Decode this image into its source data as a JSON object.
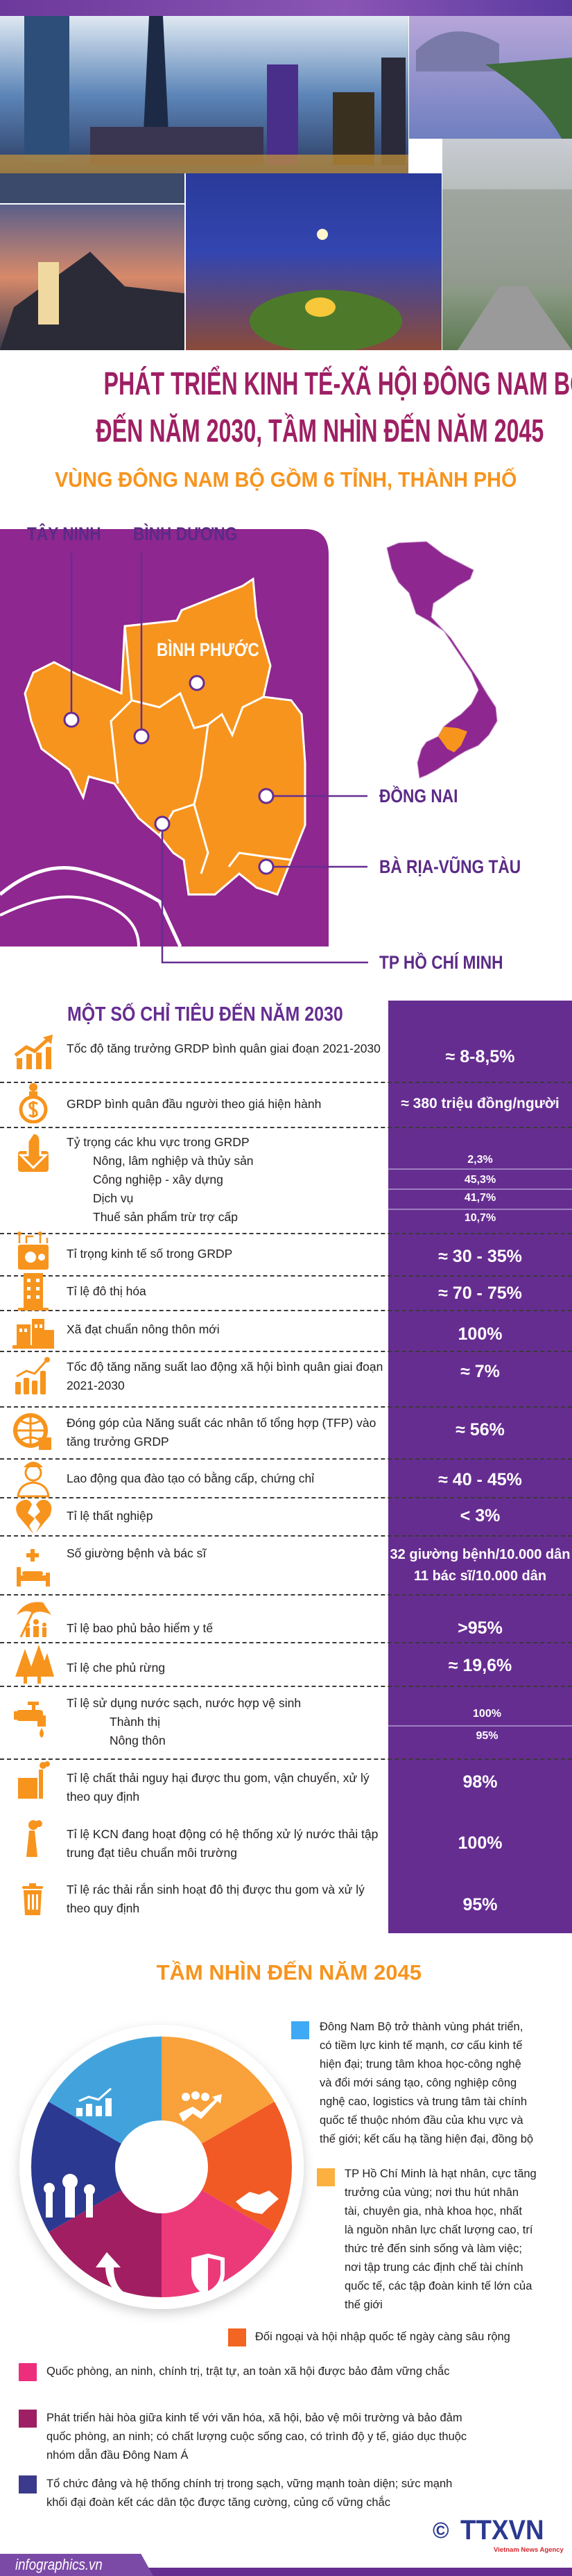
{
  "header": {
    "title_line1": "PHÁT TRIỂN KINH TẾ-XÃ HỘI ĐÔNG NAM BỘ",
    "title_line2": "ĐẾN NĂM 2030, TẦM NHÌN ĐẾN NĂM 2045",
    "subtitle": "VÙNG ĐÔNG NAM BỘ GỒM 6 TỈNH, THÀNH PHỐ"
  },
  "map": {
    "labels": [
      "TÂY NINH",
      "BÌNH DƯƠNG",
      "BÌNH PHƯỚC",
      "ĐỒNG NAI",
      "BÀ RỊA-VŨNG TÀU",
      "TP HỒ CHÍ MINH"
    ],
    "colors": {
      "region": "#f7941d",
      "other": "#8e278f"
    }
  },
  "indicators": {
    "title": "MỘT SỐ CHỈ TIÊU ĐẾN NĂM 2030",
    "rows": [
      {
        "icon": "growth-chart-icon",
        "label": "Tốc độ tăng trưởng GRDP bình quân giai đoạn 2021-2030",
        "value": "≈ 8-8,5%"
      },
      {
        "icon": "money-bag-icon",
        "label": "GRDP bình quân đầu người theo giá hiện hành",
        "value": "≈ 380 triệu đồng/người"
      },
      {
        "icon": "structure-arrow-icon",
        "label": "Tỷ trọng các khu vực trong GRDP",
        "subs": [
          {
            "label": "Nông, lâm nghiệp và thủy sản",
            "value": "2,3%"
          },
          {
            "label": "Công nghiệp - xây dựng",
            "value": "45,3%"
          },
          {
            "label": "Dịch vụ",
            "value": "41,7%"
          },
          {
            "label": "Thuế sản phẩm trừ trợ cấp",
            "value": "10,7%"
          }
        ]
      },
      {
        "icon": "digital-wallet-icon",
        "label": "Tỉ trọng kinh tế số trong GRDP",
        "value": "≈ 30 - 35%"
      },
      {
        "icon": "building-icon",
        "label": "Tỉ lệ đô thị hóa",
        "value": "≈ 70 - 75%"
      },
      {
        "icon": "village-icon",
        "label": "Xã đạt chuẩn nông thôn mới",
        "value": "100%"
      },
      {
        "icon": "productivity-chart-icon",
        "label": "Tốc độ tăng năng suất lao động xã hội bình quân giai đoạn 2021-2030",
        "value": "≈ 7%"
      },
      {
        "icon": "globe-icon",
        "label": "Đóng góp của Năng suất các nhân tố tổng hợp (TFP) vào tăng trưởng GRDP",
        "value": "≈ 56%"
      },
      {
        "icon": "worker-icon",
        "label": "Lao động qua đào tạo có bằng cấp, chứng chỉ",
        "value": "≈ 40 - 45%"
      },
      {
        "icon": "broken-heart-icon",
        "label": "Tỉ lệ thất nghiệp",
        "value": "< 3%"
      },
      {
        "icon": "hospital-bed-icon",
        "label": "Số giường bệnh và bác sĩ",
        "values": [
          "32 giường bệnh/10.000 dân",
          "11 bác sĩ/10.000 dân"
        ]
      },
      {
        "icon": "umbrella-family-icon",
        "label": "Tỉ lệ bao phủ bảo hiểm y tế",
        "value": ">95%"
      },
      {
        "icon": "forest-icon",
        "label": "Tỉ lệ che phủ rừng",
        "value": "≈ 19,6%"
      },
      {
        "icon": "water-tap-icon",
        "label": "Tỉ lệ sử dụng nước sạch, nước hợp vệ sinh",
        "subs": [
          {
            "label": "Thành thị",
            "value": "100%"
          },
          {
            "label": "Nông thôn",
            "value": "95%"
          }
        ]
      },
      {
        "icon": "factory-icon",
        "label": "Tỉ lệ chất thải nguy hại được thu gom, vận chuyển, xử lý theo quy định",
        "value": "98%"
      },
      {
        "icon": "chimney-icon",
        "label": "Tỉ lệ KCN đang hoạt động có hệ thống xử lý nước thải tập trung đạt tiêu chuẩn môi trường",
        "value": "100%"
      },
      {
        "icon": "trash-bin-icon",
        "label": "Tỉ lệ rác thải rắn sinh hoạt đô thị được thu gom và xử lý theo quy định",
        "value": "95%"
      }
    ],
    "colors": {
      "value_bg": "#662d91",
      "icon": "#f7941d"
    }
  },
  "vision": {
    "title": "TẦM NHÌN ĐẾN NĂM 2045",
    "items": [
      {
        "color": "#3fa9f5",
        "lines": [
          "Đông Nam Bộ trở thành vùng phát triển,",
          "có tiềm lực kinh tế mạnh, cơ cấu kinh tế",
          "hiện đại; trung tâm khoa học-công nghệ",
          "và đổi mới sáng tạo, công nghiệp công",
          "nghệ cao, logistics và trung tâm tài chính",
          "quốc tế thuộc nhóm đầu của khu vực và",
          "thế giới; kết cấu hạ tầng hiện đại, đồng bộ"
        ]
      },
      {
        "color": "#fbb040",
        "lines": [
          "TP Hồ Chí Minh là hạt nhân, cực tăng",
          "trưởng của vùng; nơi thu hút nhân",
          "tài, chuyên gia, nhà khoa học, nhất",
          "là nguồn nhân lực chất lượng cao, trí",
          "thức trẻ đến sinh sống và làm việc;",
          "nơi tập trung các định chế tài chính",
          "quốc tế, các tập đoàn kinh tế lớn của",
          "thế giới"
        ]
      },
      {
        "color": "#f26522",
        "lines": [
          "Đối ngoại và hội nhập quốc tế ngày càng sâu rộng"
        ]
      },
      {
        "color": "#ec2e7c",
        "lines": [
          "Quốc phòng, an ninh, chính trị, trật tự, an toàn xã hội được bảo đảm vững chắc"
        ]
      },
      {
        "color": "#9e1f63",
        "lines": [
          "Phát triển hài hòa giữa kinh tế với văn hóa, xã hội, bảo vệ môi trường và bảo đảm",
          "quốc phòng, an ninh; có chất lượng cuộc sống cao, có trình độ y tế, giáo dục thuộc",
          "nhóm dẫn đầu Đông Nam Á"
        ]
      },
      {
        "color": "#3b3a8c",
        "lines": [
          "Tổ chức đảng và hệ thống chính trị trong sạch, vững mạnh toàn diện; sức mạnh",
          "khối đại đoàn kết các dân tộc được tăng cường, củng cố vững chắc"
        ]
      }
    ],
    "wheel": [
      {
        "color": "#f9a13a",
        "icon": "people-growth-icon"
      },
      {
        "color": "#f15a24",
        "icon": "handshake-icon"
      },
      {
        "color": "#ec3a78",
        "icon": "shield-icon"
      },
      {
        "color": "#a21e62",
        "icon": "curved-arrow-icon"
      },
      {
        "color": "#2b3990",
        "icon": "raised-fists-icon"
      },
      {
        "color": "#42a3dc",
        "icon": "bar-chart-icon"
      }
    ]
  },
  "footer": {
    "site": "infographics.vn",
    "logo_text": "TTXVN",
    "logo_sub": "Vietnam News Agency",
    "copyright": "©"
  }
}
